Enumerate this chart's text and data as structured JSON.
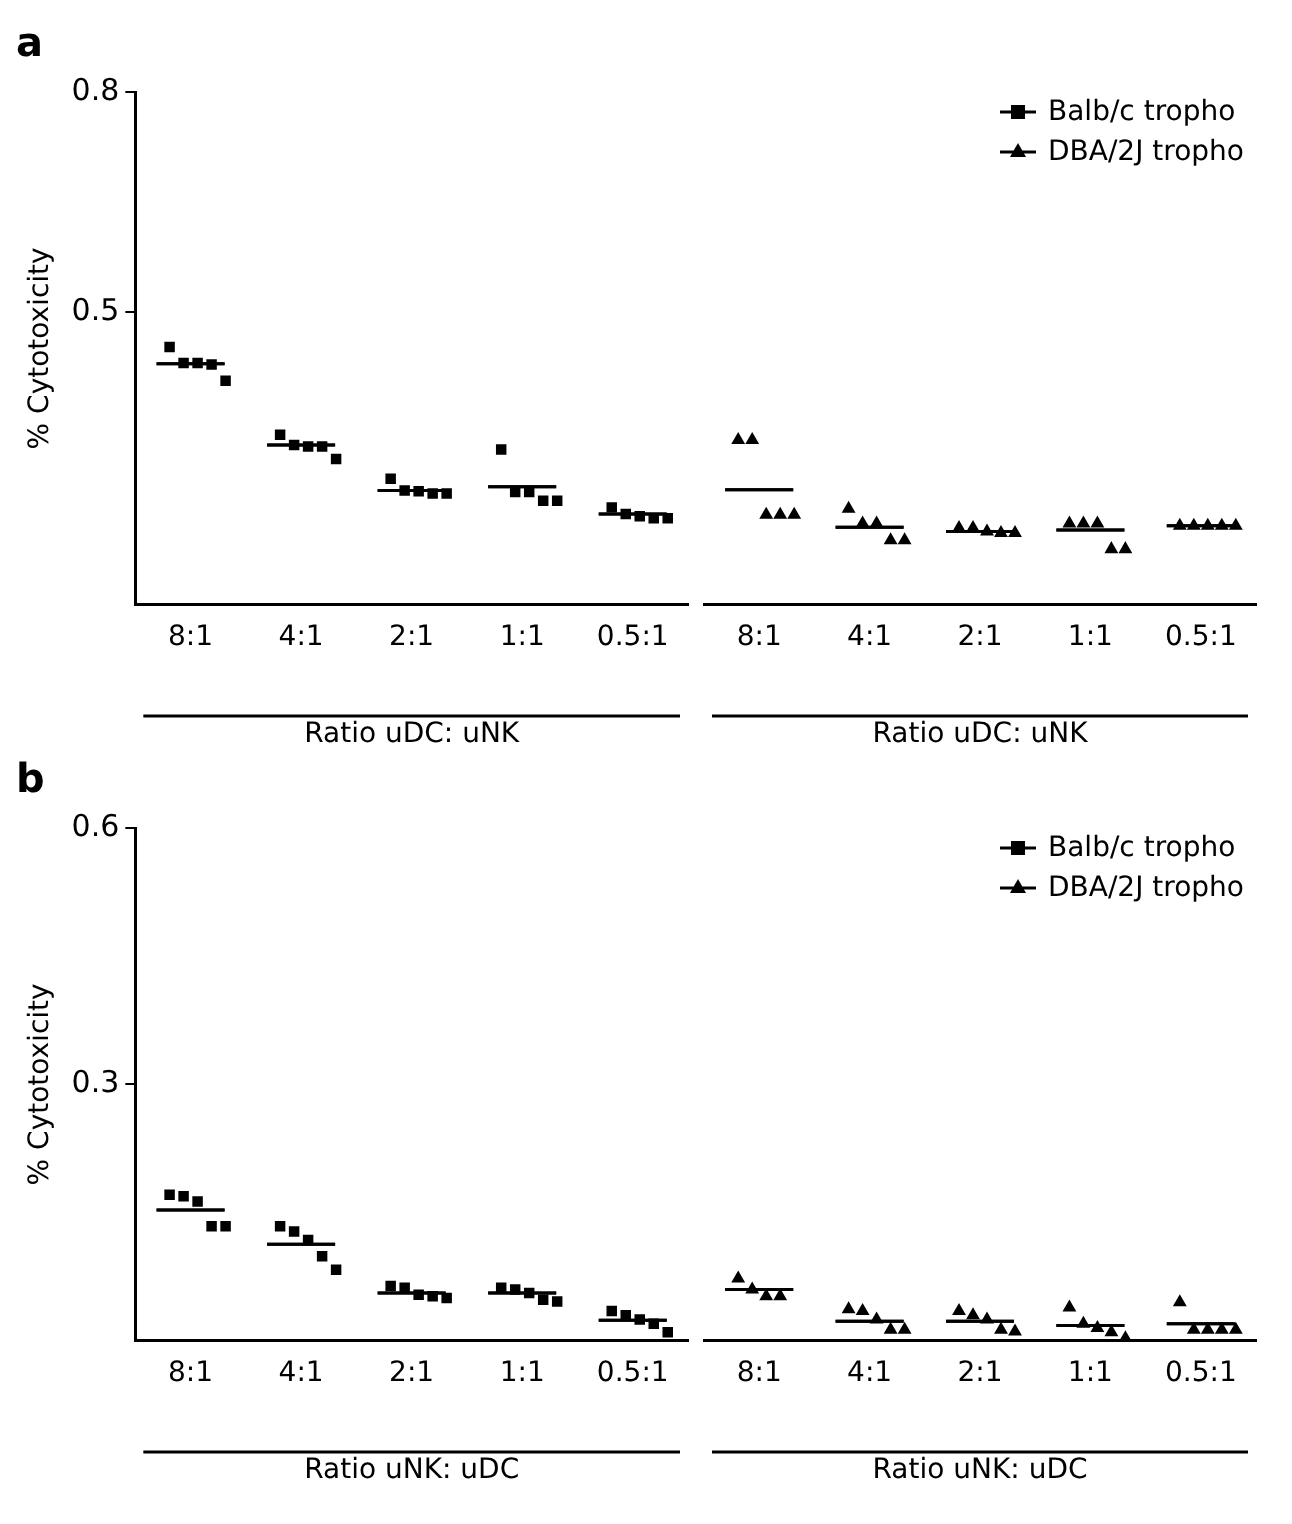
{
  "chart_data": [
    {
      "type": "scatter",
      "title": "a",
      "ylabel": "% Cytotoxicity",
      "xlabel": "Ratio uDC: uNK",
      "categories": [
        "8:1",
        "4:1",
        "2:1",
        "1:1",
        "0.5:1"
      ],
      "ylim": [
        0.1,
        0.8
      ],
      "yticks": [
        0.5,
        0.8
      ],
      "grid": false,
      "series": [
        {
          "type": "box",
          "color": "#000000",
          "boxes": [
            {
              "low": 0.429,
              "q1": 0.429,
              "median": 0.429,
              "q3": 0.429,
              "high": 0.429
            },
            {
              "low": 0.318,
              "q1": 0.318,
              "median": 0.318,
              "q3": 0.318,
              "high": 0.318
            },
            {
              "low": 0.256,
              "q1": 0.256,
              "median": 0.256,
              "q3": 0.256,
              "high": 0.256
            },
            {
              "low": 0.261,
              "q1": 0.261,
              "median": 0.261,
              "q3": 0.261,
              "high": 0.261
            },
            {
              "low": 0.224,
              "q1": 0.224,
              "median": 0.224,
              "q3": 0.224,
              "high": 0.224
            }
          ]
        },
        {
          "name": "Balb/c tropho",
          "color": "#000000",
          "marker": "square",
          "x": [
            "8:1",
            "8:1",
            "8:1",
            "8:1",
            "8:1",
            "4:1",
            "4:1",
            "4:1",
            "4:1",
            "4:1",
            "2:1",
            "2:1",
            "2:1",
            "2:1",
            "2:1",
            "1:1",
            "1:1",
            "1:1",
            "1:1",
            "1:1",
            "0.5:1",
            "0.5:1",
            "0.5:1",
            "0.5:1",
            "0.5:1"
          ],
          "values": [
            0.452,
            0.43,
            0.43,
            0.428,
            0.406,
            0.332,
            0.318,
            0.316,
            0.316,
            0.299,
            0.272,
            0.256,
            0.255,
            0.252,
            0.252,
            0.312,
            0.254,
            0.254,
            0.242,
            0.242,
            0.233,
            0.224,
            0.221,
            0.218,
            0.218
          ]
        }
      ]
    },
    {
      "type": "scatter",
      "xlabel": "Ratio uDC: uNK",
      "categories": [
        "8:1",
        "4:1",
        "2:1",
        "1:1",
        "0.5:1"
      ],
      "ylim": [
        0.1,
        0.8
      ],
      "tick_labels": "x",
      "grid": false,
      "legend": "top right",
      "series": [
        {
          "type": "box",
          "color": "#000000",
          "boxes": [
            {
              "low": 0.257,
              "q1": 0.257,
              "median": 0.257,
              "q3": 0.257,
              "high": 0.257
            },
            {
              "low": 0.206,
              "q1": 0.206,
              "median": 0.206,
              "q3": 0.206,
              "high": 0.206
            },
            {
              "low": 0.2,
              "q1": 0.2,
              "median": 0.2,
              "q3": 0.2,
              "high": 0.2
            },
            {
              "low": 0.202,
              "q1": 0.202,
              "median": 0.202,
              "q3": 0.202,
              "high": 0.202
            },
            {
              "low": 0.208,
              "q1": 0.208,
              "median": 0.208,
              "q3": 0.208,
              "high": 0.208
            }
          ]
        },
        {
          "name": "DBA/2J tropho",
          "color": "#000000",
          "marker": "triangle",
          "x": [
            "8:1",
            "8:1",
            "8:1",
            "8:1",
            "8:1",
            "4:1",
            "4:1",
            "4:1",
            "4:1",
            "4:1",
            "2:1",
            "2:1",
            "2:1",
            "2:1",
            "2:1",
            "1:1",
            "1:1",
            "1:1",
            "1:1",
            "1:1",
            "0.5:1",
            "0.5:1",
            "0.5:1",
            "0.5:1",
            "0.5:1"
          ],
          "values": [
            0.325,
            0.325,
            0.223,
            0.223,
            0.223,
            0.231,
            0.211,
            0.211,
            0.188,
            0.188,
            0.205,
            0.205,
            0.2,
            0.198,
            0.198,
            0.211,
            0.211,
            0.211,
            0.176,
            0.176,
            0.208,
            0.208,
            0.208,
            0.208,
            0.208
          ]
        }
      ]
    },
    {
      "type": "scatter",
      "title": "b",
      "ylabel": "% Cytotoxicity",
      "xlabel": "Ratio uNK: uDC",
      "categories": [
        "8:1",
        "4:1",
        "2:1",
        "1:1",
        "0.5:1"
      ],
      "ylim": [
        0,
        0.6
      ],
      "yticks": [
        0.3,
        0.6
      ],
      "grid": false,
      "series": [
        {
          "type": "box",
          "color": "#000000",
          "boxes": [
            {
              "low": 0.153,
              "q1": 0.153,
              "median": 0.153,
              "q3": 0.153,
              "high": 0.153
            },
            {
              "low": 0.113,
              "q1": 0.113,
              "median": 0.113,
              "q3": 0.113,
              "high": 0.113
            },
            {
              "low": 0.056,
              "q1": 0.056,
              "median": 0.056,
              "q3": 0.056,
              "high": 0.056
            },
            {
              "low": 0.056,
              "q1": 0.056,
              "median": 0.056,
              "q3": 0.056,
              "high": 0.056
            },
            {
              "low": 0.024,
              "q1": 0.024,
              "median": 0.024,
              "q3": 0.024,
              "high": 0.024
            }
          ]
        },
        {
          "name": "Balb/c tropho",
          "color": "#000000",
          "marker": "square",
          "x": [
            "8:1",
            "8:1",
            "8:1",
            "8:1",
            "8:1",
            "4:1",
            "4:1",
            "4:1",
            "4:1",
            "4:1",
            "2:1",
            "2:1",
            "2:1",
            "2:1",
            "2:1",
            "1:1",
            "1:1",
            "1:1",
            "1:1",
            "1:1",
            "0.5:1",
            "0.5:1",
            "0.5:1",
            "0.5:1",
            "0.5:1"
          ],
          "values": [
            0.171,
            0.169,
            0.163,
            0.134,
            0.134,
            0.134,
            0.128,
            0.118,
            0.099,
            0.083,
            0.064,
            0.062,
            0.054,
            0.052,
            0.05,
            0.062,
            0.06,
            0.056,
            0.048,
            0.046,
            0.035,
            0.03,
            0.025,
            0.02,
            0.01
          ]
        }
      ]
    },
    {
      "type": "scatter",
      "xlabel": "Ratio uNK: uDC",
      "categories": [
        "8:1",
        "4:1",
        "2:1",
        "1:1",
        "0.5:1"
      ],
      "ylim": [
        0,
        0.6
      ],
      "tick_labels": "x",
      "grid": false,
      "legend": "top right",
      "series": [
        {
          "type": "box",
          "color": "#000000",
          "boxes": [
            {
              "low": 0.06,
              "q1": 0.06,
              "median": 0.06,
              "q3": 0.06,
              "high": 0.06
            },
            {
              "low": 0.023,
              "q1": 0.023,
              "median": 0.023,
              "q3": 0.023,
              "high": 0.023
            },
            {
              "low": 0.023,
              "q1": 0.023,
              "median": 0.023,
              "q3": 0.023,
              "high": 0.023
            },
            {
              "low": 0.018,
              "q1": 0.018,
              "median": 0.018,
              "q3": 0.018,
              "high": 0.018
            },
            {
              "low": 0.02,
              "q1": 0.02,
              "median": 0.02,
              "q3": 0.02,
              "high": 0.02
            }
          ]
        },
        {
          "name": "DBA/2J tropho",
          "color": "#000000",
          "marker": "triangle",
          "x": [
            "8:1",
            "8:1",
            "8:1",
            "8:1",
            "4:1",
            "4:1",
            "4:1",
            "4:1",
            "4:1",
            "2:1",
            "2:1",
            "2:1",
            "2:1",
            "2:1",
            "1:1",
            "1:1",
            "1:1",
            "1:1",
            "1:1",
            "0.5:1",
            "0.5:1",
            "0.5:1",
            "0.5:1",
            "0.5:1"
          ],
          "values": [
            0.073,
            0.06,
            0.052,
            0.052,
            0.037,
            0.035,
            0.025,
            0.013,
            0.013,
            0.035,
            0.03,
            0.025,
            0.013,
            0.011,
            0.039,
            0.02,
            0.015,
            0.01,
            0.003,
            0.045,
            0.013,
            0.013,
            0.013,
            0.013
          ]
        }
      ]
    }
  ]
}
